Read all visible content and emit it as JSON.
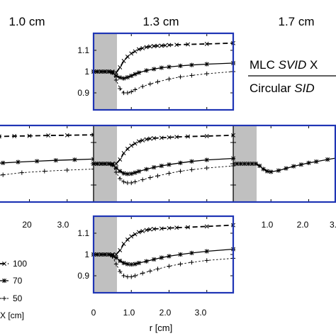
{
  "chart_data": {
    "type": "line",
    "column_titles": [
      "1.0 cm",
      "1.3 cm",
      "1.7 cm"
    ],
    "ratio_label": {
      "numerator": [
        "MLC ",
        "SVID",
        " X"
      ],
      "denominator": [
        "Circular ",
        "SID"
      ]
    },
    "legend": {
      "entries": [
        {
          "value": "100",
          "marker": "x",
          "dash": "long"
        },
        {
          "value": "70",
          "marker": "asterisk",
          "dash": "solid"
        },
        {
          "value": "50",
          "marker": "plus",
          "dash": "short"
        }
      ],
      "title": "X [cm]"
    },
    "xlabel": "r [cm]",
    "xlim": [
      0,
      3.7
    ],
    "xticks": [
      "0",
      "1.0",
      "2.0",
      "3.0"
    ],
    "left_xticks": [
      "20",
      "3.0"
    ],
    "right_xticks": [
      "1.0",
      "2.0",
      "3."
    ],
    "ylim": [
      0.82,
      1.18
    ],
    "yticks": [
      "0.9",
      "1",
      "1.1"
    ],
    "shade_to": 0.62,
    "colors": {
      "frame_highlight": "#1f35b5",
      "shade": "#c0c0c0"
    },
    "panels": [
      {
        "id": "top-center",
        "series": [
          {
            "name": "100",
            "x": [
              0,
              0.1,
              0.2,
              0.3,
              0.4,
              0.5,
              0.6,
              0.7,
              0.8,
              0.9,
              1.0,
              1.1,
              1.2,
              1.3,
              1.4,
              1.5,
              1.6,
              1.7,
              1.8,
              1.9,
              2.0,
              2.2,
              2.5,
              3.0,
              3.7
            ],
            "y": [
              1,
              1,
              1,
              1,
              1,
              1,
              0.995,
              1.02,
              1.05,
              1.07,
              1.085,
              1.095,
              1.105,
              1.11,
              1.115,
              1.118,
              1.12,
              1.121,
              1.122,
              1.123,
              1.125,
              1.126,
              1.128,
              1.13,
              1.134
            ]
          },
          {
            "name": "70",
            "x": [
              0,
              0.1,
              0.2,
              0.3,
              0.4,
              0.5,
              0.6,
              0.7,
              0.8,
              0.9,
              1.0,
              1.1,
              1.2,
              1.4,
              1.6,
              1.8,
              2.0,
              2.3,
              2.6,
              3.0,
              3.7
            ],
            "y": [
              1,
              1,
              1,
              1,
              1,
              0.995,
              0.98,
              0.972,
              0.968,
              0.973,
              0.98,
              0.988,
              0.995,
              1.005,
              1.012,
              1.018,
              1.022,
              1.027,
              1.031,
              1.035,
              1.04
            ]
          },
          {
            "name": "50",
            "x": [
              0.5,
              0.6,
              0.7,
              0.8,
              0.9,
              1.0,
              1.1,
              1.3,
              1.5,
              1.7,
              2.0,
              2.3,
              2.6,
              3.0,
              3.7
            ],
            "y": [
              0.995,
              0.96,
              0.92,
              0.9,
              0.9,
              0.905,
              0.915,
              0.93,
              0.942,
              0.952,
              0.965,
              0.975,
              0.982,
              0.99,
              1.0
            ]
          }
        ]
      },
      {
        "id": "middle-left",
        "series": [
          {
            "name": "100",
            "x": [
              0.3,
              0.6,
              0.9,
              1.2,
              1.6,
              2.0,
              2.5,
              3.0,
              3.7
            ],
            "y": [
              1.12,
              1.124,
              1.126,
              1.128,
              1.13,
              1.131,
              1.133,
              1.134,
              1.136
            ]
          },
          {
            "name": "70",
            "x": [
              0.3,
              0.6,
              0.9,
              1.3,
              1.7,
              2.2,
              2.7,
              3.2,
              3.7
            ],
            "y": [
              0.992,
              0.995,
              1.0,
              1.004,
              1.008,
              1.012,
              1.016,
              1.019,
              1.022
            ]
          },
          {
            "name": "50",
            "x": [
              0.3,
              0.8,
              1.3,
              1.8,
              2.4,
              3.0,
              3.7
            ],
            "y": [
              0.92,
              0.935,
              0.948,
              0.958,
              0.965,
              0.97,
              0.975
            ]
          }
        ]
      },
      {
        "id": "middle-center",
        "series": [
          {
            "name": "100",
            "x": [
              0,
              0.1,
              0.2,
              0.3,
              0.4,
              0.5,
              0.6,
              0.7,
              0.8,
              0.9,
              1.0,
              1.1,
              1.2,
              1.3,
              1.4,
              1.5,
              1.6,
              1.8,
              2.0,
              2.2,
              2.5,
              3.0,
              3.7
            ],
            "y": [
              1,
              1,
              1,
              1,
              1,
              1,
              1,
              1.02,
              1.05,
              1.07,
              1.085,
              1.095,
              1.105,
              1.11,
              1.115,
              1.118,
              1.12,
              1.122,
              1.124,
              1.126,
              1.128,
              1.13,
              1.134
            ]
          },
          {
            "name": "70",
            "x": [
              0,
              0.1,
              0.2,
              0.3,
              0.4,
              0.5,
              0.6,
              0.7,
              0.8,
              0.9,
              1.0,
              1.1,
              1.2,
              1.4,
              1.6,
              1.8,
              2.0,
              2.3,
              2.6,
              3.0,
              3.7
            ],
            "y": [
              1,
              1,
              1,
              1,
              1,
              0.995,
              0.98,
              0.965,
              0.955,
              0.952,
              0.953,
              0.958,
              0.964,
              0.974,
              0.983,
              0.99,
              0.996,
              1.004,
              1.011,
              1.018,
              1.025
            ]
          },
          {
            "name": "50",
            "x": [
              0.5,
              0.6,
              0.7,
              0.8,
              0.9,
              1.0,
              1.1,
              1.3,
              1.5,
              1.7,
              2.0,
              2.3,
              2.6,
              3.0,
              3.7
            ],
            "y": [
              0.995,
              0.96,
              0.93,
              0.915,
              0.91,
              0.91,
              0.915,
              0.925,
              0.935,
              0.943,
              0.955,
              0.965,
              0.972,
              0.98,
              0.99
            ]
          }
        ]
      },
      {
        "id": "middle-right",
        "series": [
          {
            "name": "70",
            "x": [
              0,
              0.1,
              0.2,
              0.3,
              0.4,
              0.5,
              0.6,
              0.7,
              0.8,
              0.9,
              1.0,
              1.2,
              1.4,
              1.6,
              1.8,
              2.0,
              2.2,
              2.5,
              3.0,
              3.5
            ],
            "y": [
              1,
              1,
              1,
              1,
              1,
              1,
              1,
              0.99,
              0.975,
              0.965,
              0.962,
              0.968,
              0.978,
              0.988,
              0.996,
              1.004,
              1.01,
              1.02,
              1.035,
              1.05
            ]
          }
        ]
      },
      {
        "id": "bottom-center",
        "series": [
          {
            "name": "100",
            "x": [
              0,
              0.1,
              0.2,
              0.3,
              0.4,
              0.5,
              0.6,
              0.7,
              0.8,
              0.9,
              1.0,
              1.1,
              1.2,
              1.3,
              1.4,
              1.5,
              1.6,
              1.8,
              2.0,
              2.2,
              2.5,
              3.0,
              3.7
            ],
            "y": [
              1,
              1,
              1,
              1,
              1,
              1,
              1,
              1.02,
              1.05,
              1.07,
              1.085,
              1.095,
              1.105,
              1.11,
              1.115,
              1.118,
              1.12,
              1.122,
              1.124,
              1.126,
              1.128,
              1.132,
              1.138
            ]
          },
          {
            "name": "70",
            "x": [
              0,
              0.1,
              0.2,
              0.3,
              0.4,
              0.5,
              0.6,
              0.7,
              0.8,
              0.9,
              1.0,
              1.1,
              1.2,
              1.4,
              1.6,
              1.8,
              2.0,
              2.3,
              2.6,
              3.0,
              3.7
            ],
            "y": [
              1,
              1,
              1,
              1,
              1,
              0.995,
              0.985,
              0.97,
              0.96,
              0.955,
              0.953,
              0.955,
              0.96,
              0.968,
              0.977,
              0.985,
              0.992,
              1.0,
              1.007,
              1.015,
              1.025
            ]
          },
          {
            "name": "50",
            "x": [
              0.5,
              0.6,
              0.7,
              0.8,
              0.9,
              1.0,
              1.1,
              1.3,
              1.5,
              1.7,
              2.0,
              2.3,
              2.6,
              3.0,
              3.7
            ],
            "y": [
              0.99,
              0.955,
              0.92,
              0.9,
              0.895,
              0.895,
              0.9,
              0.912,
              0.922,
              0.932,
              0.945,
              0.955,
              0.963,
              0.972,
              0.982
            ]
          }
        ]
      }
    ]
  }
}
